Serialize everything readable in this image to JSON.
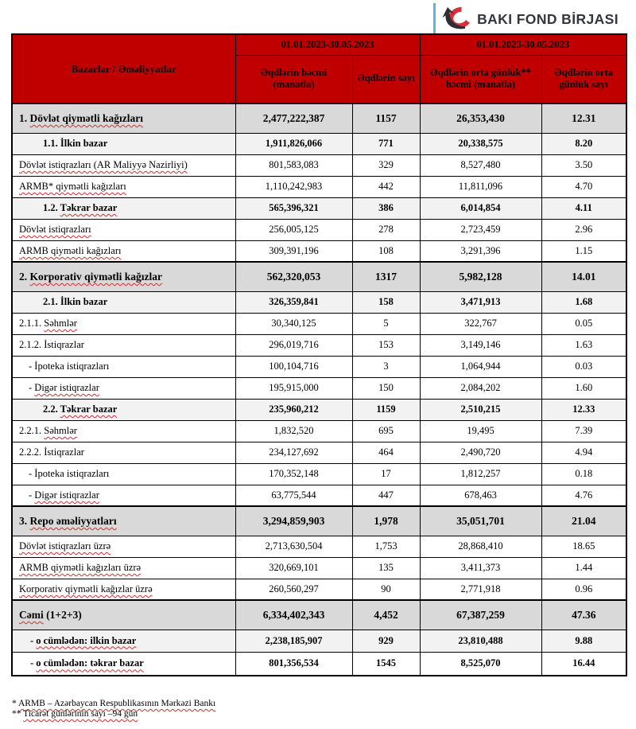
{
  "colors": {
    "header_bg": "#C00000",
    "section_bg": "#D9D9D9",
    "subsection_bg": "#F2F2F2",
    "spellcheck_wavy": "#D03030",
    "logo_blue": "#5EB3E4",
    "logo_text_color": "#35363E",
    "logo_mark_red": "#D63038",
    "logo_mark_black": "#2E2E36"
  },
  "logo": {
    "text": "BAKI FOND BİRJASI",
    "mark": "bfb-swoosh-q-icon"
  },
  "table": {
    "header": {
      "corner_label": "Bazarlar / Əməliyyatlar",
      "period_1": "01.01.2023-30.05.2023",
      "period_2": "01.01.2023-30.05.2023",
      "columns": [
        "Əqdlərin həcmi (manatla)",
        "Əqdlərin sayı",
        "Əqdlərin orta günlük** həcmi (manatla)",
        "Əqdlərin orta günlük sayı"
      ]
    },
    "rows": [
      {
        "style": "section",
        "prefix": "1. ",
        "wavy": "Dövlət qiymətli kağızları",
        "suffix": "",
        "indent": false,
        "values": [
          "2,477,222,387",
          "1157",
          "26,353,430",
          "12.31"
        ]
      },
      {
        "style": "subsection",
        "prefix": "1.1. İlkin bazar",
        "wavy": "",
        "suffix": "",
        "indent": false,
        "values": [
          "1,911,826,066",
          "771",
          "20,338,575",
          "8.20"
        ]
      },
      {
        "style": "detail",
        "prefix": "",
        "wavy": "Dövlət istiqrazları (AR Maliyyə Nazirliyi)",
        "suffix": "",
        "indent": false,
        "values": [
          "801,583,083",
          "329",
          "8,527,480",
          "3.50"
        ]
      },
      {
        "style": "detail",
        "prefix": "",
        "wavy": "ARMB* qiymətli kağızları",
        "suffix": "",
        "indent": false,
        "values": [
          "1,110,242,983",
          "442",
          "11,811,096",
          "4.70"
        ]
      },
      {
        "style": "subsection",
        "prefix": "1.2. ",
        "wavy": "Təkrar bazar",
        "suffix": "",
        "indent": false,
        "values": [
          "565,396,321",
          "386",
          "6,014,854",
          "4.11"
        ]
      },
      {
        "style": "detail",
        "prefix": "",
        "wavy": "Dövlət istiqrazları",
        "suffix": "",
        "indent": false,
        "values": [
          "256,005,125",
          "278",
          "2,723,459",
          "2.96"
        ]
      },
      {
        "style": "detail",
        "prefix": "",
        "wavy": "ARMB qiymətli kağızları",
        "suffix": "",
        "indent": false,
        "values": [
          "309,391,196",
          "108",
          "3,291,396",
          "1.15"
        ]
      },
      {
        "style": "section",
        "prefix": "2. ",
        "wavy": "Korporativ qiymətli kağızlar",
        "suffix": "",
        "indent": false,
        "values": [
          "562,320,053",
          "1317",
          "5,982,128",
          "14.01"
        ]
      },
      {
        "style": "subsection",
        "prefix": "2.1. İlkin bazar",
        "wavy": "",
        "suffix": "",
        "indent": false,
        "values": [
          "326,359,841",
          "158",
          "3,471,913",
          "1.68"
        ]
      },
      {
        "style": "detail",
        "prefix": "2.1.1. ",
        "wavy": "Səhmlər",
        "suffix": "",
        "indent": false,
        "values": [
          "30,340,125",
          "5",
          "322,767",
          "0.05"
        ]
      },
      {
        "style": "detail",
        "prefix": "2.1.2. İstiqrazlar",
        "wavy": "",
        "suffix": "",
        "indent": false,
        "values": [
          "296,019,716",
          "153",
          "3,149,146",
          "1.63"
        ]
      },
      {
        "style": "detail",
        "prefix": "- İpoteka istiqrazları",
        "wavy": "",
        "suffix": "",
        "indent": true,
        "values": [
          "100,104,716",
          "3",
          "1,064,944",
          "0.03"
        ]
      },
      {
        "style": "detail",
        "prefix": "- ",
        "wavy": "Digər istiqrazlar",
        "suffix": "",
        "indent": true,
        "values": [
          "195,915,000",
          "150",
          "2,084,202",
          "1.60"
        ]
      },
      {
        "style": "subsection",
        "prefix": "2.2. ",
        "wavy": "Təkrar bazar",
        "suffix": "",
        "indent": false,
        "values": [
          "235,960,212",
          "1159",
          "2,510,215",
          "12.33"
        ]
      },
      {
        "style": "detail",
        "prefix": "2.2.1. ",
        "wavy": "Səhmlər",
        "suffix": "",
        "indent": false,
        "values": [
          "1,832,520",
          "695",
          "19,495",
          "7.39"
        ]
      },
      {
        "style": "detail",
        "prefix": "2.2.2. İstiqrazlar",
        "wavy": "",
        "suffix": "",
        "indent": false,
        "values": [
          "234,127,692",
          "464",
          "2,490,720",
          "4.94"
        ]
      },
      {
        "style": "detail",
        "prefix": "- İpoteka istiqrazları",
        "wavy": "",
        "suffix": "",
        "indent": true,
        "values": [
          "170,352,148",
          "17",
          "1,812,257",
          "0.18"
        ]
      },
      {
        "style": "detail",
        "prefix": "- ",
        "wavy": "Digər istiqrazlar",
        "suffix": "",
        "indent": true,
        "values": [
          "63,775,544",
          "447",
          "678,463",
          "4.76"
        ]
      },
      {
        "style": "section",
        "prefix": "3. ",
        "wavy": "Repo əməliyyatları",
        "suffix": "",
        "indent": false,
        "values": [
          "3,294,859,903",
          "1,978",
          "35,051,701",
          "21.04"
        ]
      },
      {
        "style": "detail",
        "prefix": "",
        "wavy": "Dövlət istiqrazları üzrə",
        "suffix": "",
        "indent": false,
        "values": [
          "2,713,630,504",
          "1,753",
          "28,868,410",
          "18.65"
        ]
      },
      {
        "style": "detail",
        "prefix": "",
        "wavy": "ARMB qiymətli kağızları üzrə",
        "suffix": "",
        "indent": false,
        "values": [
          "320,669,101",
          "135",
          "3,411,373",
          "1.44"
        ]
      },
      {
        "style": "detail",
        "prefix": "",
        "wavy": "Korporativ qiymətli kağızlar üzrə",
        "suffix": "",
        "indent": false,
        "values": [
          "260,560,297",
          "90",
          "2,771,918",
          "0.96"
        ]
      },
      {
        "style": "section",
        "prefix": "",
        "wavy": "Cəmi",
        "suffix": " (1+2+3)",
        "indent": false,
        "values": [
          "6,334,402,343",
          "4,452",
          "67,387,259",
          "47.36"
        ]
      },
      {
        "style": "subtotal_a",
        "prefix": "- ",
        "wavy": "o cümlədən: ilkin bazar",
        "suffix": "",
        "indent": false,
        "values": [
          "2,238,185,907",
          "929",
          "23,810,488",
          "9.88"
        ]
      },
      {
        "style": "subtotal_b",
        "prefix": "- ",
        "wavy": "o cümlədən: təkrar bazar",
        "suffix": "",
        "indent": false,
        "values": [
          "801,356,534",
          "1545",
          "8,525,070",
          "16.44"
        ]
      }
    ]
  },
  "footnotes": [
    {
      "prefix": "* ",
      "wavy": "ARMB – Azərbaycan Respublikasının Mərkəzi Bankı"
    },
    {
      "prefix": "** ",
      "wavy": "Ticarət günlərinin sayı –94 gün"
    }
  ]
}
